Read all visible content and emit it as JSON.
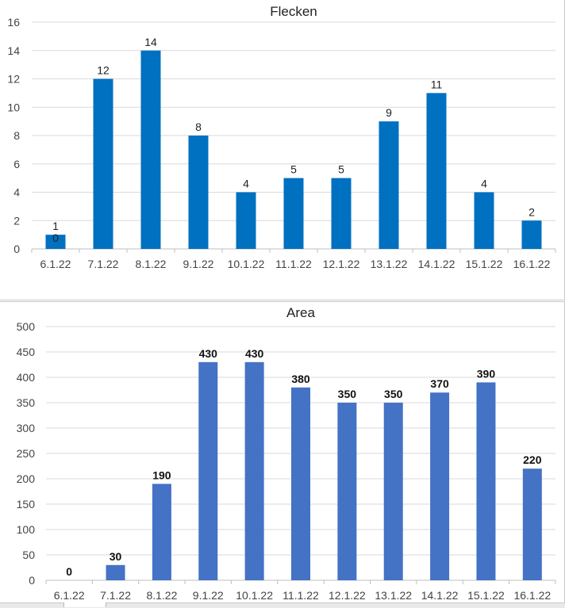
{
  "chart_data": [
    {
      "type": "bar",
      "title": "Flecken",
      "categories": [
        "6.1.22",
        "7.1.22",
        "8.1.22",
        "9.1.22",
        "10.1.22",
        "11.1.22",
        "12.1.22",
        "13.1.22",
        "14.1.22",
        "15.1.22",
        "16.1.22"
      ],
      "values": [
        1,
        12,
        14,
        8,
        4,
        5,
        5,
        9,
        11,
        4,
        2
      ],
      "data_labels": [
        "1",
        "12",
        "14",
        "8",
        "4",
        "5",
        "5",
        "9",
        "11",
        "4",
        "2"
      ],
      "extra_label": "0",
      "ylim": [
        0,
        16
      ],
      "yticks": [
        0,
        2,
        4,
        6,
        8,
        10,
        12,
        14,
        16
      ],
      "bar_color": "#0070C0",
      "grid": true,
      "xlabel": "",
      "ylabel": ""
    },
    {
      "type": "bar",
      "title": "Area",
      "categories": [
        "6.1.22",
        "7.1.22",
        "8.1.22",
        "9.1.22",
        "10.1.22",
        "11.1.22",
        "12.1.22",
        "13.1.22",
        "14.1.22",
        "15.1.22",
        "16.1.22"
      ],
      "values": [
        0,
        30,
        190,
        430,
        430,
        380,
        350,
        350,
        370,
        390,
        220
      ],
      "data_labels": [
        "0",
        "30",
        "190",
        "430",
        "430",
        "380",
        "350",
        "350",
        "370",
        "390",
        "220"
      ],
      "ylim": [
        0,
        500
      ],
      "yticks": [
        0,
        50,
        100,
        150,
        200,
        250,
        300,
        350,
        400,
        450,
        500
      ],
      "bar_color": "#4472C4",
      "grid": true,
      "xlabel": "",
      "ylabel": ""
    }
  ]
}
